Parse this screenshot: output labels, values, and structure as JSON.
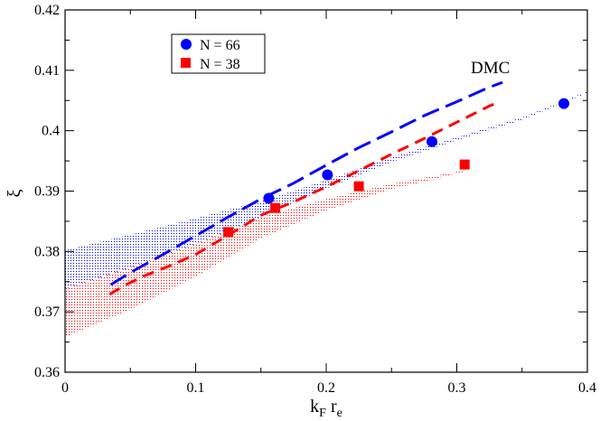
{
  "chart_data": {
    "type": "scatter",
    "title": "",
    "xlabel_main": "k",
    "xlabel_sub1": "F",
    "xlabel_mid": " r",
    "xlabel_sub2": "e",
    "ylabel": "ξ",
    "xlim": [
      0,
      0.4
    ],
    "ylim": [
      0.36,
      0.42
    ],
    "x_ticks": [
      0,
      0.1,
      0.2,
      0.3,
      0.4
    ],
    "x_tick_labels": [
      "0",
      "0.1",
      "0.2",
      "0.3",
      "0.4"
    ],
    "y_ticks": [
      0.36,
      0.37,
      0.38,
      0.39,
      0.4,
      0.41,
      0.42
    ],
    "y_tick_labels": [
      "0.36",
      "0.37",
      "0.38",
      "0.39",
      "0.4",
      "0.41",
      "0.42"
    ],
    "legend_position": "top-left",
    "annotation": "DMC",
    "colors": {
      "blue": "#0000ff",
      "red": "#ff0000"
    },
    "series": [
      {
        "name": "N = 66",
        "marker": "circle",
        "color": "#0000ff",
        "points": [
          [
            0.156,
            0.3888
          ],
          [
            0.201,
            0.3927
          ],
          [
            0.281,
            0.3982
          ],
          [
            0.382,
            0.4045
          ]
        ]
      },
      {
        "name": "N = 38",
        "marker": "square",
        "color": "#ff0000",
        "points": [
          [
            0.125,
            0.3832
          ],
          [
            0.161,
            0.3872
          ],
          [
            0.225,
            0.3908
          ],
          [
            0.306,
            0.3944
          ]
        ]
      }
    ],
    "dmc_curves": [
      {
        "name": "DMC N = 66",
        "color": "#0000ff",
        "style": "long-dash",
        "points": [
          [
            0.035,
            0.3745
          ],
          [
            0.05,
            0.3765
          ],
          [
            0.075,
            0.3795
          ],
          [
            0.1,
            0.3826
          ],
          [
            0.125,
            0.3857
          ],
          [
            0.15,
            0.3887
          ],
          [
            0.175,
            0.3913
          ],
          [
            0.2,
            0.3943
          ],
          [
            0.225,
            0.3972
          ],
          [
            0.25,
            0.3998
          ],
          [
            0.275,
            0.4025
          ],
          [
            0.3,
            0.4048
          ],
          [
            0.325,
            0.4072
          ],
          [
            0.335,
            0.408
          ]
        ]
      },
      {
        "name": "DMC N = 38",
        "color": "#ff0000",
        "style": "dash",
        "points": [
          [
            0.034,
            0.3729
          ],
          [
            0.045,
            0.3743
          ],
          [
            0.06,
            0.3759
          ],
          [
            0.08,
            0.3776
          ],
          [
            0.1,
            0.3795
          ],
          [
            0.125,
            0.3827
          ],
          [
            0.15,
            0.386
          ],
          [
            0.175,
            0.3882
          ],
          [
            0.2,
            0.3907
          ],
          [
            0.225,
            0.3934
          ],
          [
            0.25,
            0.3961
          ],
          [
            0.275,
            0.3987
          ],
          [
            0.3,
            0.4014
          ],
          [
            0.325,
            0.4041
          ],
          [
            0.333,
            0.4048
          ]
        ]
      }
    ],
    "bands": [
      {
        "name": "N = 66 band",
        "color": "#0000ff",
        "upper": [
          [
            0,
            0.3802
          ],
          [
            0.05,
            0.3828
          ],
          [
            0.1,
            0.3855
          ],
          [
            0.15,
            0.3883
          ],
          [
            0.2,
            0.3918
          ],
          [
            0.25,
            0.3956
          ],
          [
            0.3,
            0.3989
          ],
          [
            0.35,
            0.4022
          ],
          [
            0.4,
            0.4065
          ]
        ],
        "lower": [
          [
            0,
            0.3738
          ],
          [
            0.05,
            0.3773
          ],
          [
            0.1,
            0.3812
          ],
          [
            0.15,
            0.3857
          ],
          [
            0.2,
            0.3904
          ],
          [
            0.25,
            0.3948
          ],
          [
            0.3,
            0.3984
          ],
          [
            0.35,
            0.4018
          ],
          [
            0.4,
            0.4062
          ]
        ]
      },
      {
        "name": "N = 38 band",
        "color": "#ff0000",
        "upper": [
          [
            0,
            0.3739
          ],
          [
            0.05,
            0.3774
          ],
          [
            0.1,
            0.3812
          ],
          [
            0.15,
            0.3857
          ],
          [
            0.2,
            0.3887
          ],
          [
            0.25,
            0.3912
          ],
          [
            0.3,
            0.3932
          ],
          [
            0.308,
            0.3935
          ]
        ],
        "lower": [
          [
            0,
            0.3658
          ],
          [
            0.05,
            0.3704
          ],
          [
            0.1,
            0.3758
          ],
          [
            0.15,
            0.3822
          ],
          [
            0.2,
            0.3868
          ],
          [
            0.25,
            0.3903
          ],
          [
            0.3,
            0.3929
          ],
          [
            0.308,
            0.3933
          ]
        ]
      }
    ]
  }
}
